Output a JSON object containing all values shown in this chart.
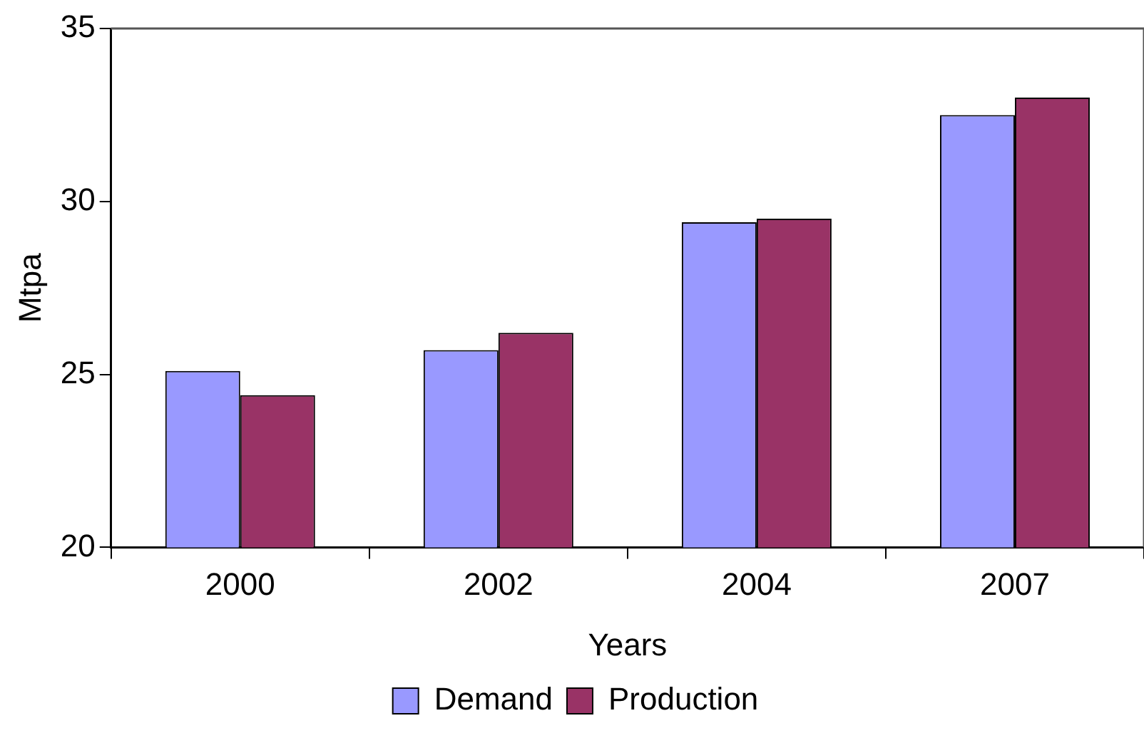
{
  "chart_data": {
    "type": "bar",
    "xlabel": "Years",
    "ylabel": "Mtpa",
    "categories": [
      "2000",
      "2002",
      "2004",
      "2007"
    ],
    "series": [
      {
        "name": "Demand",
        "color": "#9999ff",
        "values": [
          25.1,
          25.7,
          29.4,
          32.5
        ]
      },
      {
        "name": "Production",
        "color": "#993366",
        "values": [
          24.4,
          26.2,
          29.5,
          33.0
        ]
      }
    ],
    "ylim": [
      20,
      35
    ],
    "yticks": [
      20,
      25,
      30,
      35
    ],
    "grid": false,
    "legend": "bottom"
  }
}
